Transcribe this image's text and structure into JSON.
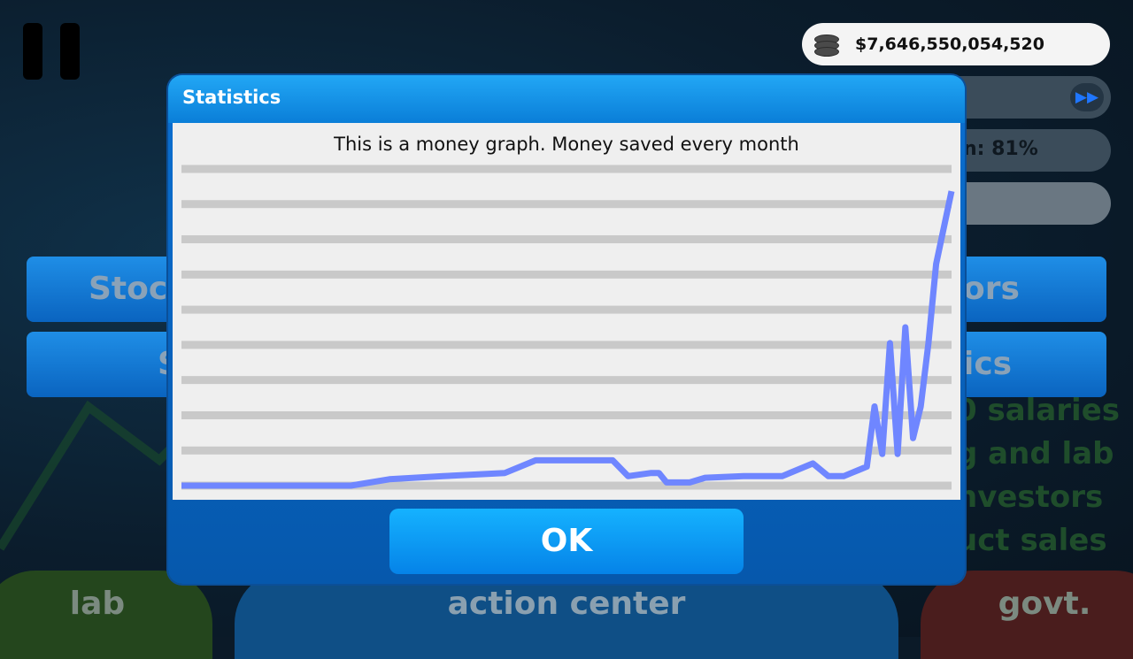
{
  "hud": {
    "money": "$7,646,550,054,520",
    "fast_forward_icon": "fast-forward-icon",
    "percent_text": "n: 81%"
  },
  "background": {
    "left_buttons": [
      "Stoc",
      "S"
    ],
    "right_buttons": [
      "ors",
      "ics"
    ],
    "right_list": [
      "0 salaries",
      "g and lab",
      "nvestors",
      "uct sales"
    ],
    "bottom_tabs": {
      "lab": "lab",
      "action_center": "action center",
      "govt": "govt."
    }
  },
  "modal": {
    "title": "Statistics",
    "ok_label": "OK"
  },
  "chart_data": {
    "type": "line",
    "title": "This is a money graph. Money saved every month",
    "xlabel": "",
    "ylabel": "",
    "grid": true,
    "gridlines": 10,
    "color": "#6f86ff",
    "ylim": [
      0,
      10
    ],
    "x": [
      0,
      22,
      27,
      34,
      42,
      46,
      49,
      56,
      58,
      61,
      62,
      63,
      66,
      68,
      73,
      78,
      82,
      84,
      86,
      87,
      88,
      89,
      90,
      91,
      92,
      93,
      94,
      95,
      96,
      97,
      98,
      100
    ],
    "values": [
      0,
      0,
      0.2,
      0.3,
      0.4,
      0.8,
      0.8,
      0.8,
      0.3,
      0.4,
      0.4,
      0.1,
      0.1,
      0.25,
      0.3,
      0.3,
      0.7,
      0.3,
      0.3,
      0.4,
      0.5,
      0.6,
      2.5,
      1.0,
      4.5,
      1.0,
      5.0,
      1.5,
      2.5,
      4.5,
      7.0,
      9.3
    ]
  }
}
